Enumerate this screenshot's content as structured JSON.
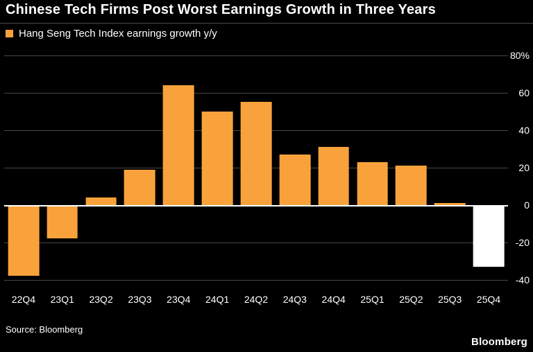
{
  "header": {
    "title": "Chinese Tech Firms Post Worst Earnings Growth in Three Years"
  },
  "legend": {
    "label": "Hang Seng Tech Index earnings growth y/y",
    "marker_color": "#F9A23B"
  },
  "chart_data": {
    "type": "bar",
    "title": "Chinese Tech Firms Post Worst Earnings Growth in Three Years",
    "categories": [
      "22Q4",
      "23Q1",
      "23Q2",
      "23Q3",
      "23Q4",
      "24Q1",
      "24Q2",
      "24Q3",
      "24Q4",
      "25Q1",
      "25Q2",
      "25Q3",
      "25Q4"
    ],
    "values": [
      -38,
      -18,
      4,
      19,
      64,
      50,
      55,
      27,
      31,
      23,
      21,
      1,
      -33
    ],
    "unit": "%",
    "yticks": [
      80,
      60,
      40,
      20,
      0,
      -20,
      -40
    ],
    "ytick_labels": [
      "80%",
      "60",
      "40",
      "20",
      "0",
      "-20",
      "-40"
    ],
    "ylim": [
      -46,
      80
    ],
    "grid": true,
    "legend": [
      "Hang Seng Tech Index earnings growth y/y"
    ],
    "legend_position": "top-left",
    "bar_colors": {
      "default": "#F9A23B",
      "highlight": "#FFFFFF",
      "highlight_index": 12
    }
  },
  "footer": {
    "source": "Source: Bloomberg",
    "brand": "Bloomberg"
  }
}
